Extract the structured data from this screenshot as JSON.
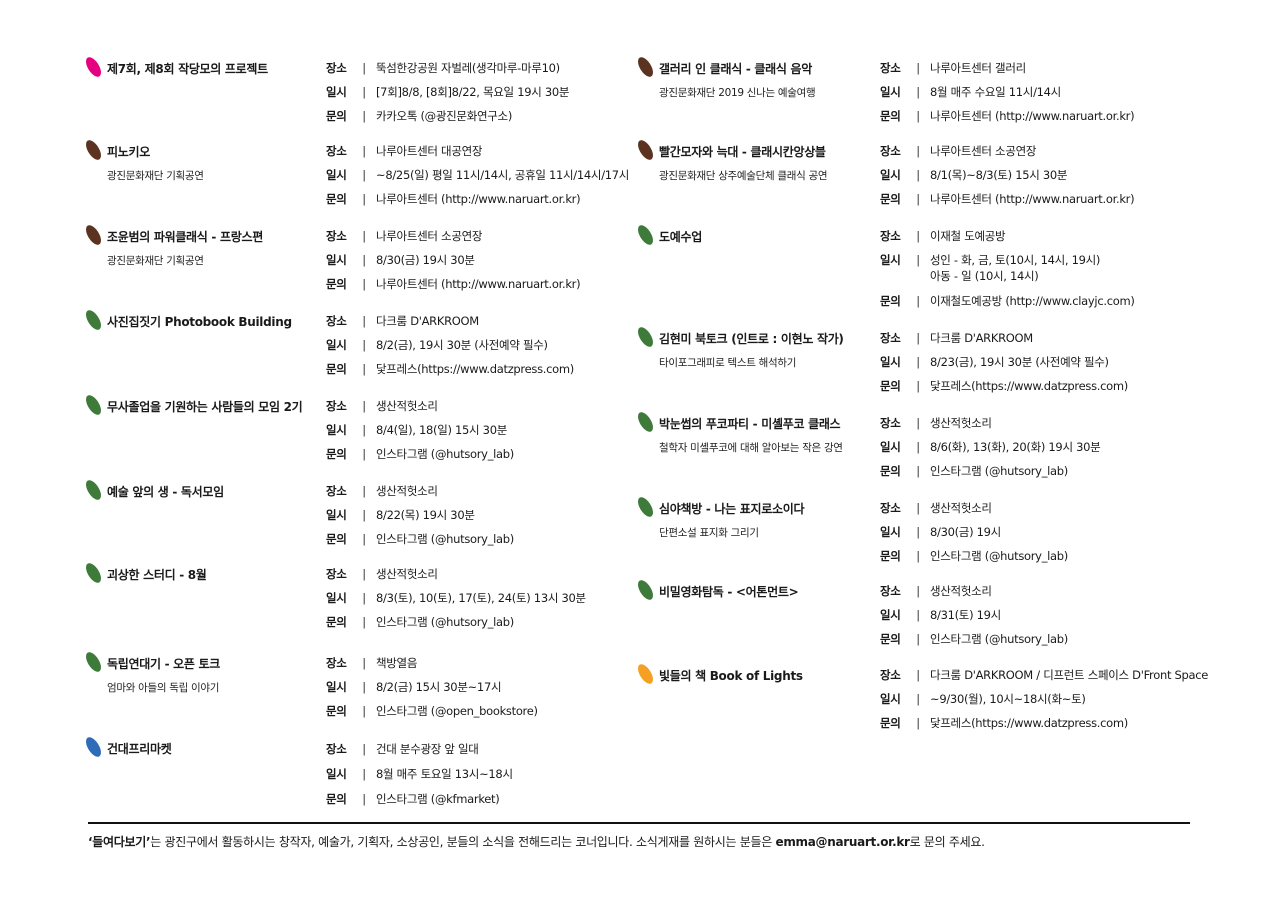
{
  "labels": {
    "place": "장소",
    "date": "일시",
    "contact": "문의",
    "separator": "|"
  },
  "colors": {
    "pink": "#e4007f",
    "brown": "#5b3320",
    "green": "#3e7a39",
    "blue": "#2e6bb8",
    "orange": "#f5a023"
  },
  "left_column": [
    {
      "title": "제7회, 제8회 작당모의 프로젝트",
      "subtitle": "",
      "color": "pink",
      "place": "뚝섬한강공원 자벌레(생각마루-마루10)",
      "date": [
        "[7회]8/8, [8회]8/22, 목요일 19시 30분"
      ],
      "contact": "카카오톡 (@광진문화연구소)"
    },
    {
      "title": "피노키오",
      "subtitle": "광진문화재단 기획공연",
      "color": "brown",
      "place": "나루아트센터 대공연장",
      "date": [
        "~8/25(일) 평일 11시/14시, 공휴일 11시/14시/17시"
      ],
      "contact": "나루아트센터 (http://www.naruart.or.kr)"
    },
    {
      "title": "조윤범의 파워클래식 - 프랑스편",
      "subtitle": "광진문화재단 기획공연",
      "color": "brown",
      "place": "나루아트센터 소공연장",
      "date": [
        "8/30(금) 19시 30분"
      ],
      "contact": "나루아트센터 (http://www.naruart.or.kr)"
    },
    {
      "title": "사진집짓기 Photobook Building",
      "subtitle": "",
      "color": "green",
      "place": "다크룸 D'ARKROOM",
      "date": [
        "8/2(금), 19시 30분 (사전예약 필수)"
      ],
      "contact": "닻프레스(https://www.datzpress.com)"
    },
    {
      "title": "무사졸업을 기원하는 사람들의 모임 2기",
      "subtitle": "",
      "color": "green",
      "place": "생산적헛소리",
      "date": [
        "8/4(일), 18(일) 15시 30분"
      ],
      "contact": "인스타그램 (@hutsory_lab)"
    },
    {
      "title": "예술 앞의 생 - 독서모임",
      "subtitle": "",
      "color": "green",
      "place": "생산적헛소리",
      "date": [
        "8/22(목) 19시 30분"
      ],
      "contact": "인스타그램 (@hutsory_lab)"
    },
    {
      "title": "괴상한 스터디 - 8월",
      "subtitle": "",
      "color": "green",
      "place": "생산적헛소리",
      "date": [
        "8/3(토), 10(토), 17(토), 24(토) 13시 30분"
      ],
      "contact": "인스타그램 (@hutsory_lab)"
    },
    {
      "title": "독립연대기 - 오픈 토크",
      "subtitle": "엄마와 아들의 독립 이야기",
      "color": "green",
      "place": "책방열음",
      "date": [
        "8/2(금) 15시 30분~17시"
      ],
      "contact": "인스타그램 (@open_bookstore)"
    },
    {
      "title": "건대프리마켓",
      "subtitle": "",
      "color": "blue",
      "place": "건대 분수광장 앞 일대",
      "date": [
        "8월 매주 토요일 13시~18시"
      ],
      "contact": "인스타그램 (@kfmarket)"
    }
  ],
  "right_column": [
    {
      "title": "갤러리 인 클래식 - 클래식 음악",
      "subtitle": "광진문화재단 2019 신나는 예술여행",
      "color": "brown",
      "place": "나루아트센터 갤러리",
      "date": [
        "8월 매주 수요일 11시/14시"
      ],
      "contact": "나루아트센터 (http://www.naruart.or.kr)"
    },
    {
      "title": "빨간모자와 늑대 - 클래시칸앙상블",
      "subtitle": "광진문화재단 상주예술단체 클래식 공연",
      "color": "brown",
      "place": "나루아트센터 소공연장",
      "date": [
        "8/1(목)~8/3(토) 15시 30분"
      ],
      "contact": "나루아트센터 (http://www.naruart.or.kr)"
    },
    {
      "title": "도예수업",
      "subtitle": "",
      "color": "green",
      "place": "이재철 도예공방",
      "date": [
        "성인 - 화, 금, 토(10시, 14시, 19시)",
        "아동 - 일 (10시, 14시)"
      ],
      "contact": "이재철도예공방 (http://www.clayjc.com)"
    },
    {
      "title": "김현미 북토크 (인트로 : 이현노 작가)",
      "subtitle": "타이포그래피로 텍스트 해석하기",
      "color": "green",
      "place": "다크룸 D'ARKROOM",
      "date": [
        "8/23(금), 19시 30분 (사전예약 필수)"
      ],
      "contact": "닻프레스(https://www.datzpress.com)"
    },
    {
      "title": "박눈썹의 푸코파티 - 미셸푸코 클래스",
      "subtitle": "철학자 미셸푸코에 대해 알아보는 작은 강연",
      "color": "green",
      "place": "생산적헛소리",
      "date": [
        "8/6(화), 13(화), 20(화) 19시 30분"
      ],
      "contact": "인스타그램 (@hutsory_lab)"
    },
    {
      "title": "심야책방 - 나는 표지로소이다",
      "subtitle": "단편소설 표지화 그리기",
      "color": "green",
      "place": "생산적헛소리",
      "date": [
        "8/30(금) 19시"
      ],
      "contact": "인스타그램 (@hutsory_lab)"
    },
    {
      "title": "비밀영화탐독 - <어톤먼트>",
      "subtitle": "",
      "color": "green",
      "place": "생산적헛소리",
      "date": [
        "8/31(토) 19시"
      ],
      "contact": "인스타그램 (@hutsory_lab)"
    },
    {
      "title": "빛들의 책 Book of Lights",
      "subtitle": "",
      "color": "orange",
      "place": "다크룸 D'ARKROOM / 디프런트 스페이스 D'Front Space",
      "date": [
        "~9/30(월), 10시~18시(화~토)"
      ],
      "contact": "닻프레스(https://www.datzpress.com)"
    }
  ],
  "footer": {
    "highlight": "‘들여다보기’",
    "text_before_email": "는 광진구에서 활동하시는 창작자, 예술가, 기획자, 소상공인, 분들의 소식을 전해드리는 코너입니다. 소식게재를 원하시는 분들은 ",
    "email": "emma@naruart.or.kr",
    "text_after_email": "로 문의 주세요."
  }
}
